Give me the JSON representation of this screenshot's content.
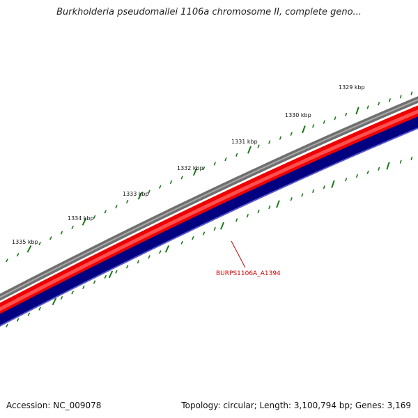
{
  "title": "Burkholderia pseudomallei 1106a chromosome II, complete geno...",
  "ticks": [
    {
      "label": "1329 kbp"
    },
    {
      "label": "1330 kbp"
    },
    {
      "label": "1331 kbp"
    },
    {
      "label": "1332 kbp"
    },
    {
      "label": "1333 kbp"
    },
    {
      "label": "1334 kbp"
    },
    {
      "label": "1335 kbp"
    }
  ],
  "gene_label": "BURPS1106A_A1394",
  "footer": {
    "accession": "Accession: NC_009078",
    "summary": "Topology: circular; Length: 3,100,794 bp; Genes: 3,169"
  },
  "colors": {
    "backbone": "#808080",
    "forward_strand": "#ee0000",
    "reverse_strand": "#000080",
    "ticks": "#1a7a1a",
    "gene_label": "#cc0000"
  }
}
